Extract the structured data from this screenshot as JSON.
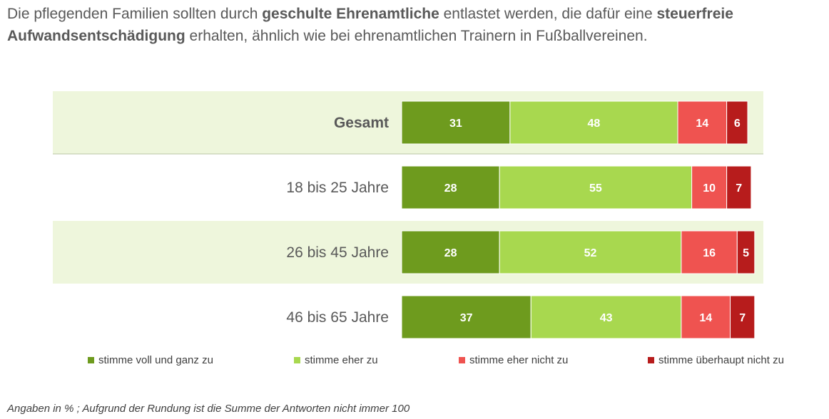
{
  "title": {
    "parts": [
      {
        "text": "Die pflegenden Familien sollten durch ",
        "bold": false
      },
      {
        "text": "geschulte Ehrenamtliche",
        "bold": true
      },
      {
        "text": " entlastet werden, die dafür eine ",
        "bold": false
      },
      {
        "text": "steuerfreie Aufwandsentschädigung",
        "bold": true
      },
      {
        "text": " erhalten, ähnlich wie bei ehrenamtlichen Trainern in Fußballvereinen.",
        "bold": false
      }
    ]
  },
  "chart_data": {
    "type": "bar",
    "orientation": "horizontal",
    "stacked": true,
    "categories": [
      "Gesamt",
      "18 bis 25 Jahre",
      "26 bis 45 Jahre",
      "46 bis 65 Jahre"
    ],
    "series": [
      {
        "name": "stimme voll und ganz zu",
        "values": [
          31,
          28,
          28,
          37
        ],
        "color": "#6e9b1e"
      },
      {
        "name": "stimme eher zu",
        "values": [
          48,
          55,
          52,
          43
        ],
        "color": "#a8d84f"
      },
      {
        "name": "stimme eher nicht zu",
        "values": [
          14,
          10,
          16,
          14
        ],
        "color": "#ef5350"
      },
      {
        "name": "stimme überhaupt nicht zu",
        "values": [
          6,
          7,
          5,
          7
        ],
        "color": "#b71c1c"
      }
    ],
    "legend_position": "bottom"
  },
  "colors": {
    "row_band": "#eef6dc",
    "separator": "#b8c4a4"
  },
  "footnote": "Angaben in % ; Aufgrund der Rundung ist die Summe der Antworten nicht immer 100"
}
